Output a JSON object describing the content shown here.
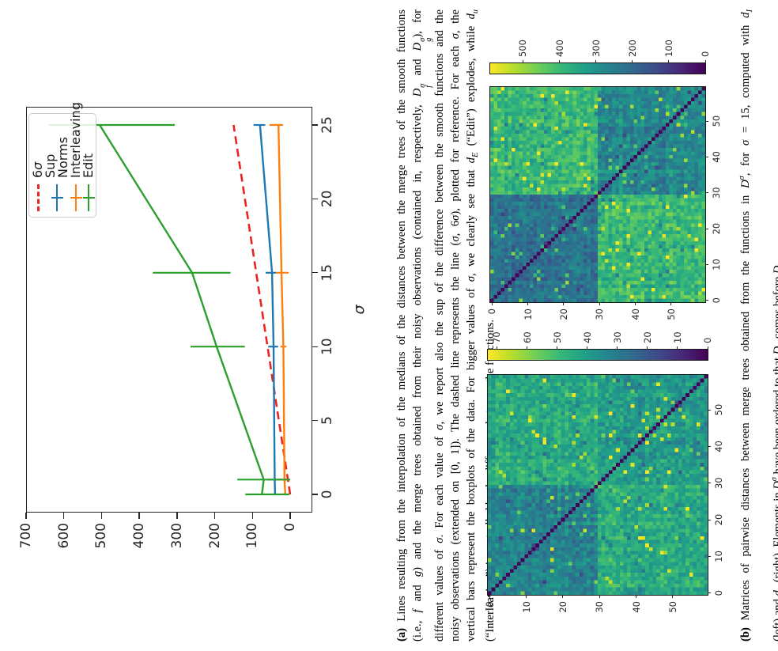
{
  "figure_orientation": "rotated 90 degrees counterclockwise",
  "chart_data": [
    {
      "type": "line",
      "name": "median merge-tree distances vs sigma",
      "xlabel": "σ",
      "xticks": [
        0,
        5,
        10,
        15,
        20,
        25
      ],
      "yticks": [
        0,
        100,
        200,
        300,
        400,
        500,
        600,
        700
      ],
      "xlim": [
        -1.2,
        26.2
      ],
      "ylim": [
        -65,
        701
      ],
      "grid": false,
      "legend_position": "upper right",
      "series": [
        {
          "name": "6σ",
          "color": "#ee2222",
          "style": "dashed",
          "x": [
            0,
            25
          ],
          "y": [
            0,
            150
          ]
        },
        {
          "name": "Sup Norms",
          "color": "#1f77b4",
          "style": "solid",
          "x": [
            0,
            1,
            10,
            15,
            25
          ],
          "y": [
            40,
            41,
            44,
            48,
            80
          ],
          "err_lo": [
            35,
            22,
            32,
            36,
            66
          ],
          "err_hi": [
            45,
            60,
            58,
            65,
            97
          ]
        },
        {
          "name": "Interleaving",
          "color": "#ff7f0e",
          "style": "solid",
          "x": [
            0,
            1,
            10,
            15,
            25
          ],
          "y": [
            13,
            15,
            18,
            23,
            31
          ],
          "err_lo": [
            8,
            0,
            10,
            4,
            19
          ],
          "err_hi": [
            18,
            33,
            26,
            38,
            55
          ]
        },
        {
          "name": "Edit",
          "color": "#2ca02c",
          "style": "solid",
          "x": [
            0,
            1,
            10,
            15,
            25
          ],
          "y": [
            75,
            70,
            195,
            260,
            505
          ],
          "err_lo": [
            2,
            0,
            120,
            158,
            306
          ],
          "err_hi": [
            119,
            140,
            264,
            364,
            640
          ]
        }
      ]
    },
    {
      "type": "heatmap",
      "name": "pairwise interleaving distances d_I",
      "size": 60,
      "xticks": [
        0,
        10,
        20,
        30,
        40,
        50
      ],
      "yticks": [
        0,
        10,
        20,
        30,
        40,
        50
      ],
      "colorbar_ticks": [
        0,
        10,
        20,
        30,
        40,
        50,
        60,
        70
      ],
      "vmin": 0,
      "vmax": 73,
      "colormap": "viridis",
      "diagonal_value": 0,
      "block_means": {
        "within_f": 33,
        "between": 45,
        "within_g": 40
      },
      "seed": 7
    },
    {
      "type": "heatmap",
      "name": "pairwise edit distances d_E",
      "size": 60,
      "xticks": [
        0,
        10,
        20,
        30,
        40,
        50
      ],
      "yticks": [
        0,
        10,
        20,
        30,
        40,
        50
      ],
      "colorbar_ticks": [
        0,
        100,
        200,
        300,
        400,
        500
      ],
      "vmin": 0,
      "vmax": 590,
      "colormap": "viridis",
      "diagonal_value": 0,
      "block_means": {
        "within_f": 225,
        "between": 395,
        "within_g": 270
      },
      "seed": 99
    }
  ],
  "legend_html": [
    "6<i>σ</i>",
    "Sup Norms",
    "Interleaving",
    "Edit"
  ],
  "captions": {
    "a": {
      "lines_html": [
        "<b>(a)</b> Lines resulting from the interpolation of the medians of the distances between the merge trees of the smooth functions",
        "(i.e., <i>f</i> and <i>g</i>) and the merge trees obtained from their noisy observations (contained in, respectively, <i>D</i><span class=\"ss\"><span><i>σ</i></span><span><i>f</i></span></span> and <i>D</i><span class=\"ss\"><span><i>σ</i></span><span><i>g</i></span></span>), for",
        "different values of <i>σ</i>. For each value of <i>σ</i>, we report also the sup of the difference between the smooth functions and the",
        "noisy observations (extended on [0, 1]). The dashed line represents the line (<i>σ</i>, 6<i>σ</i>), plotted for reference. For each <i>σ</i>, the",
        "vertical bars represent the boxplots of the data. For bigger values of <i>σ</i>, we clearly see that <i>d<sub>E</sub></i> (“Edit”) explodes, while <i>d<sub>u</sub></i>",
        "(“Interleaving”) is controlled by the difference between the functions."
      ]
    },
    "b": {
      "lines_html": [
        "<b>(b)</b> Matrices of pairwise distances between merge trees obtained from the functions in <i>D</i><sup><i>σ</i></sup>, for <i>σ</i> = 15, computed with <i>d<sub>I</sub></i>",
        "(left) and <i>d<sub>E</sub></i> (right). Elements in <i>D</i><sup><i>σ</i></sup> have been ordered to that <i>D</i><span class=\"ss\"><span><i>σ</i></span><span><i>f</i></span></span> comes before <i>D</i><span class=\"ss\"><span><i>σ</i></span><span><i>g</i></span></span>."
      ]
    }
  }
}
